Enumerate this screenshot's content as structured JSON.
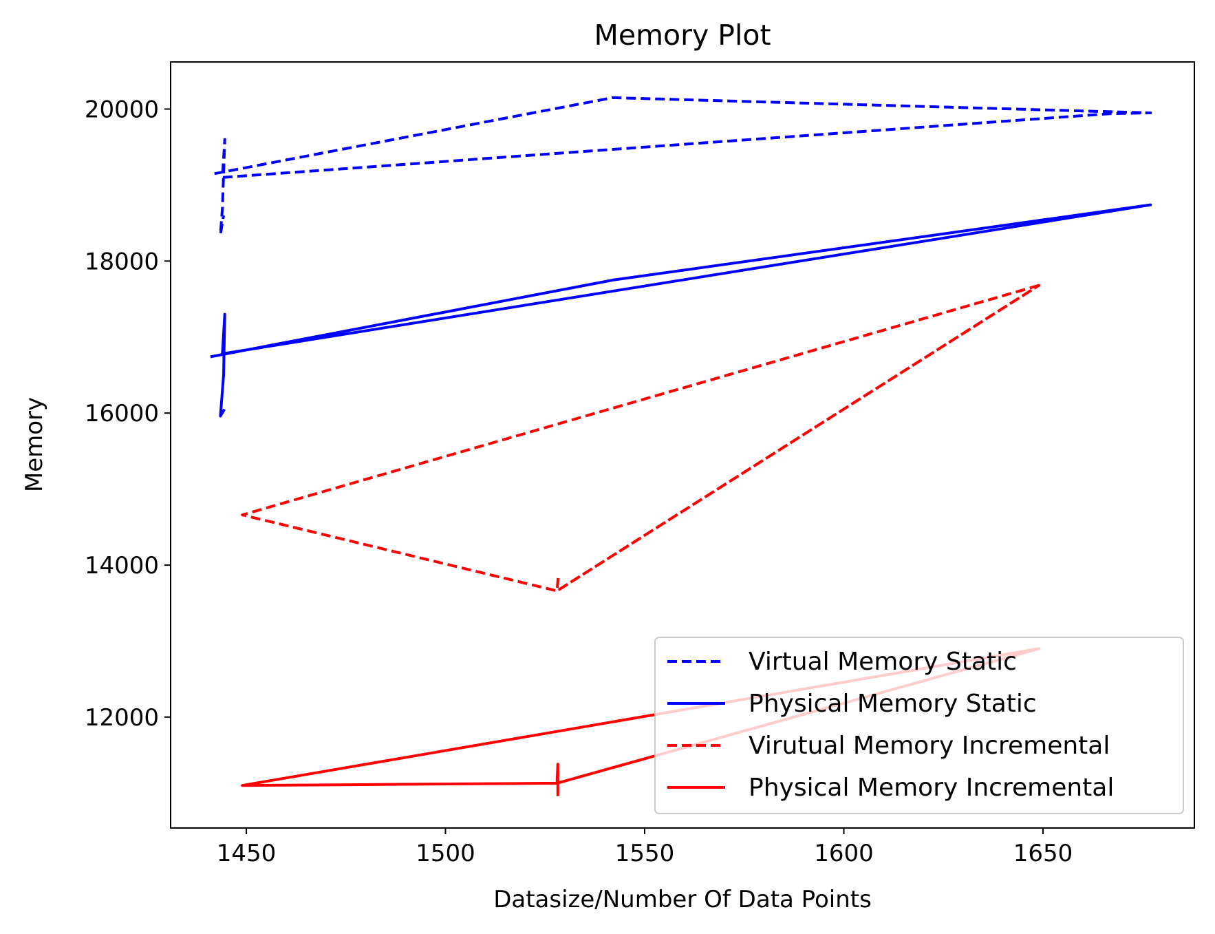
{
  "chart_data": {
    "type": "line",
    "title": "Memory Plot",
    "xlabel": "Datasize/Number Of Data Points",
    "ylabel": "Memory",
    "xlim": [
      1431,
      1688
    ],
    "ylim": [
      10540,
      20620
    ],
    "xticks": [
      1450,
      1500,
      1550,
      1600,
      1650
    ],
    "yticks": [
      12000,
      14000,
      16000,
      18000,
      20000
    ],
    "grid": false,
    "legend_position": "lower-right",
    "series": [
      {
        "name": "Virtual Memory Static",
        "color": "#0000ff",
        "linestyle": "dashed",
        "points": [
          [
            1442,
            19150
          ],
          [
            1542,
            20150
          ],
          [
            1677,
            19950
          ],
          [
            1667,
            19940
          ],
          [
            1444,
            19100
          ],
          [
            1444.6,
            19600
          ],
          [
            1444,
            18700
          ],
          [
            1443.5,
            18350
          ],
          [
            1444.3,
            18600
          ]
        ]
      },
      {
        "name": "Physical Memory Static",
        "color": "#0000ff",
        "linestyle": "solid",
        "points": [
          [
            1441,
            16740
          ],
          [
            1542,
            17750
          ],
          [
            1677,
            18740
          ],
          [
            1444,
            16780
          ],
          [
            1444.6,
            17300
          ],
          [
            1444.3,
            16500
          ],
          [
            1443.5,
            15960
          ],
          [
            1444.5,
            16050
          ]
        ]
      },
      {
        "name": "Virutual Memory Incremental",
        "color": "#ff0000",
        "linestyle": "dashed",
        "points": [
          [
            1649,
            17680
          ],
          [
            1449,
            14660
          ],
          [
            1528,
            13660
          ],
          [
            1649,
            17680
          ],
          [
            1528,
            13660
          ],
          [
            1528.3,
            13850
          ]
        ]
      },
      {
        "name": "Physical Memory Incremental",
        "color": "#ff0000",
        "linestyle": "solid",
        "points": [
          [
            1449,
            11100
          ],
          [
            1649,
            12900
          ],
          [
            1528,
            11130
          ],
          [
            1449,
            11100
          ],
          [
            1528,
            11130
          ],
          [
            1528.2,
            11380
          ],
          [
            1528.2,
            10960
          ]
        ]
      }
    ]
  }
}
